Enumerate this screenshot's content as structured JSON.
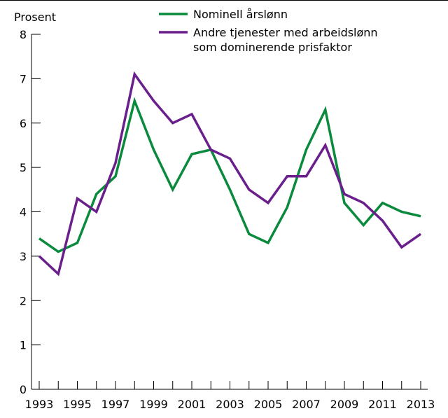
{
  "chart_data": {
    "type": "line",
    "ylabel": "Prosent",
    "ylim": [
      0,
      8
    ],
    "yticks": [
      0,
      1,
      2,
      3,
      4,
      5,
      6,
      7,
      8
    ],
    "x": [
      1993,
      1994,
      1995,
      1996,
      1997,
      1998,
      1999,
      2000,
      2001,
      2002,
      2003,
      2004,
      2005,
      2006,
      2007,
      2008,
      2009,
      2010,
      2011,
      2012,
      2013
    ],
    "xtick_labels": [
      "1993",
      "1995",
      "1997",
      "1999",
      "2001",
      "2003",
      "2005",
      "2007",
      "2009",
      "2011",
      "2013"
    ],
    "legend_position": "top-center",
    "series": [
      {
        "name": "Nominell årslønn",
        "name_lines": [
          "Nominell årslønn"
        ],
        "color": "#0a8a3c",
        "values": [
          3.4,
          3.1,
          3.3,
          4.4,
          4.8,
          6.5,
          5.4,
          4.5,
          5.3,
          5.4,
          4.5,
          3.5,
          3.3,
          4.1,
          5.4,
          6.3,
          4.2,
          3.7,
          4.2,
          4.0,
          3.9
        ]
      },
      {
        "name": "Andre tjenester med arbeidslønn som dominerende prisfaktor",
        "name_lines": [
          "Andre tjenester med arbeidslønn",
          "som dominerende prisfaktor"
        ],
        "color": "#6a1f8c",
        "values": [
          3.0,
          2.6,
          4.3,
          4.0,
          5.1,
          7.1,
          6.5,
          6.0,
          6.2,
          5.4,
          5.2,
          4.5,
          4.2,
          4.8,
          4.8,
          5.5,
          4.4,
          4.2,
          3.8,
          3.2,
          3.5
        ]
      }
    ]
  }
}
